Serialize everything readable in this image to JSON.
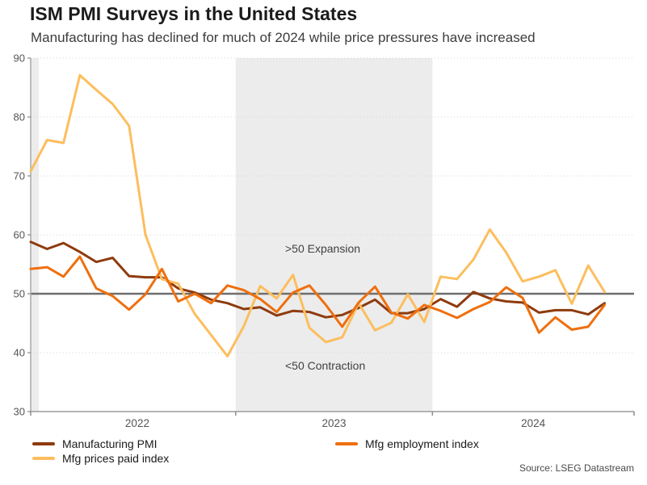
{
  "header": {
    "title": "ISM PMI Surveys in the United States",
    "subtitle": "Manufacturing has declined for much of 2024 while price pressures have increased"
  },
  "annotations": {
    "expansion": ">50 Expansion",
    "contraction": "<50 Contraction"
  },
  "legend": {
    "items": [
      {
        "label": "Manufacturing PMI",
        "color": "#8e3b0e"
      },
      {
        "label": "Mfg employment index",
        "color": "#ef6f0e"
      },
      {
        "label": "Mfg prices paid index",
        "color": "#fcbe5e"
      }
    ]
  },
  "footer": {
    "source": "Source: LSEG Datastream"
  },
  "chart_data": {
    "type": "line",
    "x": [
      "Dec 2021",
      "Jan 2022",
      "Feb 2022",
      "Mar 2022",
      "Apr 2022",
      "May 2022",
      "Jun 2022",
      "Jul 2022",
      "Aug 2022",
      "Sep 2022",
      "Oct 2022",
      "Nov 2022",
      "Dec 2022",
      "Jan 2023",
      "Feb 2023",
      "Mar 2023",
      "Apr 2023",
      "May 2023",
      "Jun 2023",
      "Jul 2023",
      "Aug 2023",
      "Sep 2023",
      "Oct 2023",
      "Nov 2023",
      "Dec 2023",
      "Jan 2024",
      "Feb 2024",
      "Mar 2024",
      "Apr 2024",
      "May 2024",
      "Jun 2024",
      "Jul 2024",
      "Aug 2024",
      "Sep 2024",
      "Oct 2024",
      "Nov 2024"
    ],
    "series": [
      {
        "name": "Manufacturing PMI",
        "color": "#8e3b0e",
        "values": [
          58.8,
          57.6,
          58.6,
          57.1,
          55.4,
          56.1,
          53.0,
          52.8,
          52.8,
          50.9,
          50.2,
          49.0,
          48.4,
          47.4,
          47.7,
          46.3,
          47.1,
          46.9,
          46.0,
          46.4,
          47.6,
          49.0,
          46.7,
          46.7,
          47.4,
          49.1,
          47.8,
          50.3,
          49.2,
          48.7,
          48.5,
          46.8,
          47.2,
          47.2,
          46.5,
          48.4
        ]
      },
      {
        "name": "Mfg prices paid index",
        "color": "#fcbe5e",
        "values": [
          70.8,
          76.1,
          75.6,
          87.1,
          84.6,
          82.2,
          78.5,
          60.0,
          52.5,
          51.7,
          46.6,
          43.0,
          39.4,
          44.5,
          51.3,
          49.2,
          53.2,
          44.2,
          41.8,
          42.6,
          48.4,
          43.8,
          45.1,
          49.9,
          45.2,
          52.9,
          52.5,
          55.8,
          60.9,
          57.0,
          52.1,
          52.9,
          54.0,
          48.3,
          54.8,
          50.3
        ]
      },
      {
        "name": "Mfg employment index",
        "color": "#ef6f0e",
        "values": [
          54.2,
          54.5,
          52.9,
          56.3,
          50.9,
          49.6,
          47.3,
          49.9,
          54.2,
          48.7,
          50.0,
          48.4,
          51.4,
          50.6,
          49.1,
          46.9,
          50.2,
          51.4,
          48.1,
          44.4,
          48.5,
          51.2,
          46.8,
          45.8,
          48.1,
          47.1,
          45.9,
          47.4,
          48.6,
          51.1,
          49.3,
          43.4,
          46.0,
          43.9,
          44.4,
          48.1
        ]
      }
    ],
    "ylim": [
      30,
      90
    ],
    "yticks": [
      30,
      40,
      50,
      60,
      70,
      80,
      90
    ],
    "xticks": [
      "2022",
      "2023",
      "2024"
    ],
    "reference_line": 50,
    "shaded_years": [
      "2021",
      "2023"
    ],
    "grid": "horizontal-dotted",
    "band_color": "#ececec",
    "reference_line_color": "#6f6f6f",
    "axis_color": "#a8a8a8",
    "tick_color": "#8c8c8c",
    "grid_color": "#d4d4d4",
    "label_color": "#555555",
    "legend_position": "bottom"
  }
}
